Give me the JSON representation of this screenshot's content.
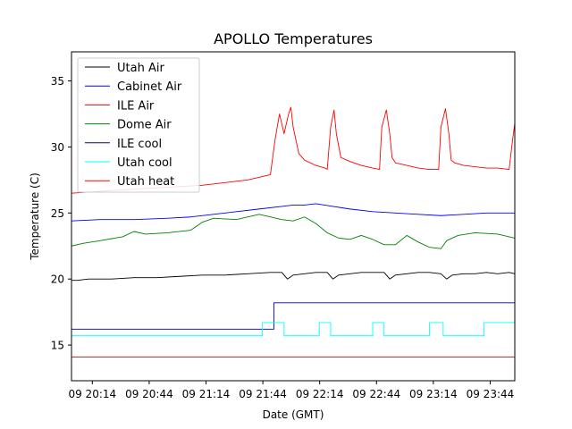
{
  "chart_data": {
    "type": "line",
    "title": "APOLLO Temperatures",
    "xlabel": "Date (GMT)",
    "ylabel": "Temperature (C)",
    "x_unit": "hours since 09 20:00",
    "xlim": [
      0.05,
      3.95
    ],
    "ylim": [
      12.3,
      37.2
    ],
    "grid": false,
    "legend_position": "top-left",
    "x_ticks": [
      {
        "value": 0.2333,
        "label": "09 20:14"
      },
      {
        "value": 0.7333,
        "label": "09 20:44"
      },
      {
        "value": 1.2333,
        "label": "09 21:14"
      },
      {
        "value": 1.7333,
        "label": "09 21:44"
      },
      {
        "value": 2.2333,
        "label": "09 22:14"
      },
      {
        "value": 2.7333,
        "label": "09 22:44"
      },
      {
        "value": 3.2333,
        "label": "09 23:14"
      },
      {
        "value": 3.7333,
        "label": "09 23:44"
      }
    ],
    "y_ticks": [
      {
        "value": 15,
        "label": "15"
      },
      {
        "value": 20,
        "label": "20"
      },
      {
        "value": 25,
        "label": "25"
      },
      {
        "value": 30,
        "label": "30"
      },
      {
        "value": 35,
        "label": "35"
      }
    ],
    "series": [
      {
        "name": "Utah Air",
        "color": "#000000",
        "x": [
          0.05,
          0.1,
          0.2,
          0.4,
          0.6,
          0.8,
          1.0,
          1.2,
          1.4,
          1.6,
          1.8,
          1.9,
          1.95,
          2.0,
          2.1,
          2.2,
          2.3,
          2.35,
          2.4,
          2.5,
          2.6,
          2.7,
          2.8,
          2.85,
          2.9,
          3.0,
          3.1,
          3.2,
          3.3,
          3.35,
          3.4,
          3.5,
          3.6,
          3.7,
          3.8,
          3.9,
          3.95
        ],
        "y": [
          19.9,
          19.9,
          20.0,
          20.0,
          20.1,
          20.1,
          20.2,
          20.3,
          20.3,
          20.4,
          20.5,
          20.5,
          20.0,
          20.3,
          20.4,
          20.5,
          20.5,
          20.0,
          20.3,
          20.4,
          20.5,
          20.5,
          20.5,
          20.0,
          20.3,
          20.4,
          20.5,
          20.5,
          20.4,
          20.0,
          20.3,
          20.4,
          20.4,
          20.5,
          20.4,
          20.5,
          20.4
        ]
      },
      {
        "name": "Cabinet Air",
        "color": "#0000ff",
        "x": [
          0.05,
          0.3,
          0.6,
          0.9,
          1.1,
          1.3,
          1.5,
          1.7,
          1.9,
          2.0,
          2.1,
          2.2,
          2.35,
          2.5,
          2.7,
          2.9,
          3.1,
          3.3,
          3.5,
          3.7,
          3.95
        ],
        "y": [
          24.4,
          24.5,
          24.5,
          24.6,
          24.7,
          24.9,
          25.1,
          25.3,
          25.5,
          25.6,
          25.6,
          25.7,
          25.5,
          25.3,
          25.1,
          25.0,
          24.9,
          24.8,
          24.9,
          25.0,
          25.0
        ]
      },
      {
        "name": "ILE Air",
        "color": "#ff0000",
        "x": [
          0.05,
          0.4,
          0.8,
          1.2,
          1.6,
          1.75,
          1.8,
          1.84,
          1.86,
          1.88,
          1.92,
          1.96,
          1.98,
          2.0,
          2.05,
          2.1,
          2.2,
          2.28,
          2.3,
          2.33,
          2.36,
          2.38,
          2.42,
          2.5,
          2.6,
          2.7,
          2.76,
          2.78,
          2.82,
          2.85,
          2.87,
          2.9,
          3.0,
          3.1,
          3.2,
          3.28,
          3.3,
          3.34,
          3.37,
          3.39,
          3.42,
          3.5,
          3.6,
          3.7,
          3.8,
          3.9,
          3.93,
          3.95
        ],
        "y": [
          26.5,
          26.7,
          26.9,
          27.1,
          27.5,
          27.8,
          27.9,
          30.5,
          31.5,
          32.5,
          31.0,
          32.5,
          33.0,
          31.5,
          29.5,
          29.0,
          28.6,
          28.4,
          28.3,
          31.5,
          32.8,
          31.0,
          29.2,
          28.9,
          28.6,
          28.4,
          28.3,
          31.5,
          32.8,
          31.0,
          29.2,
          28.8,
          28.6,
          28.4,
          28.3,
          28.3,
          31.5,
          32.9,
          31.0,
          29.0,
          28.8,
          28.6,
          28.5,
          28.4,
          28.4,
          28.3,
          30.5,
          31.8
        ]
      },
      {
        "name": "Dome Air",
        "color": "#008000",
        "x": [
          0.05,
          0.15,
          0.3,
          0.5,
          0.6,
          0.7,
          0.9,
          1.1,
          1.2,
          1.3,
          1.5,
          1.7,
          1.8,
          1.9,
          2.0,
          2.1,
          2.2,
          2.3,
          2.4,
          2.5,
          2.6,
          2.7,
          2.8,
          2.9,
          3.0,
          3.1,
          3.2,
          3.3,
          3.35,
          3.45,
          3.6,
          3.8,
          3.95
        ],
        "y": [
          22.5,
          22.7,
          22.9,
          23.2,
          23.6,
          23.4,
          23.5,
          23.7,
          24.3,
          24.6,
          24.5,
          24.9,
          24.7,
          24.5,
          24.4,
          24.7,
          24.2,
          23.5,
          23.1,
          23.0,
          23.3,
          23.0,
          22.6,
          22.6,
          23.3,
          22.8,
          22.4,
          22.3,
          22.9,
          23.3,
          23.5,
          23.4,
          23.1
        ]
      },
      {
        "name": "ILE cool",
        "color": "#00008b",
        "step": true,
        "x": [
          0.05,
          1.83,
          1.83,
          3.95
        ],
        "y": [
          16.2,
          16.2,
          18.2,
          18.2
        ]
      },
      {
        "name": "Utah cool",
        "color": "#00ffff",
        "step": true,
        "x": [
          0.05,
          1.73,
          1.73,
          1.92,
          1.92,
          2.23,
          2.23,
          2.33,
          2.33,
          2.7,
          2.7,
          2.8,
          2.8,
          3.2,
          3.2,
          3.32,
          3.32,
          3.68,
          3.68,
          3.95
        ],
        "y": [
          15.7,
          15.7,
          16.7,
          16.7,
          15.7,
          15.7,
          16.7,
          16.7,
          15.7,
          15.7,
          16.7,
          16.7,
          15.7,
          15.7,
          16.7,
          16.7,
          15.7,
          15.7,
          16.7,
          16.7
        ]
      },
      {
        "name": "Utah heat",
        "color": "#ff0000",
        "x": [
          0.05,
          3.95
        ],
        "y": [
          14.1,
          14.1
        ]
      }
    ]
  }
}
